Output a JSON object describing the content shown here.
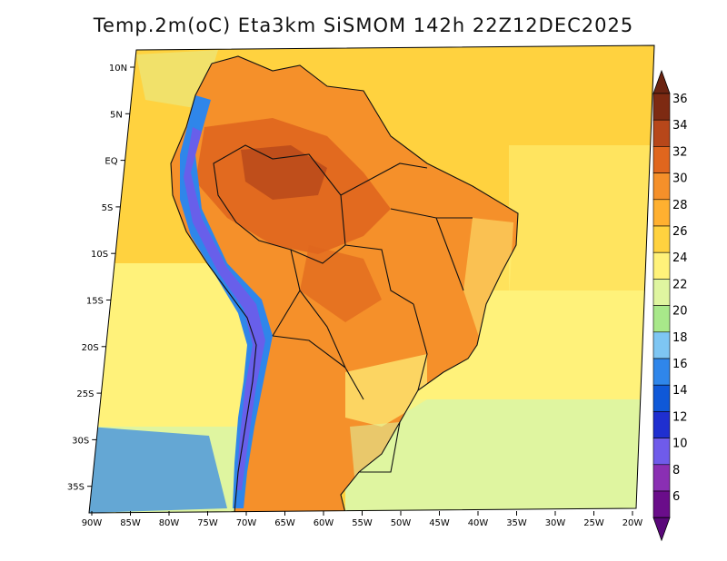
{
  "title": "Temp.2m(oC) Eta3km SiSMOM 142h 22Z12DEC2025",
  "lat_labels": [
    "10N",
    "5N",
    "EQ",
    "5S",
    "10S",
    "15S",
    "20S",
    "25S",
    "30S",
    "35S"
  ],
  "lon_labels": [
    "90W",
    "85W",
    "80W",
    "75W",
    "70W",
    "65W",
    "60W",
    "55W",
    "50W",
    "45W",
    "40W",
    "35W",
    "30W",
    "25W",
    "20W"
  ],
  "colorbar": {
    "labels": [
      "6",
      "8",
      "10",
      "12",
      "14",
      "16",
      "18",
      "20",
      "22",
      "24",
      "26",
      "28",
      "30",
      "32",
      "34",
      "36"
    ],
    "colors": [
      "#6a0d8a",
      "#8a2fb3",
      "#6f5bea",
      "#1f2fd0",
      "#0f58d8",
      "#2f86ea",
      "#7ec6f3",
      "#a8e88a",
      "#dff5a0",
      "#fff27a",
      "#ffd23f",
      "#ffb030",
      "#f5902a",
      "#e0661e",
      "#b7471a",
      "#7d2a12"
    ],
    "min_color": "#5a087a",
    "max_color": "#6b2412"
  },
  "palette": {
    "ocean_warm": "#ffd23f",
    "ocean_mid": "#fff27a",
    "ocean_cool": "#dff5a0",
    "land_hot": "#f5902a",
    "land_very_hot": "#e0661e",
    "land_max": "#b7471a",
    "andes_cold": "#6f5bea",
    "andes_cool": "#2f86ea",
    "border": "#111111"
  }
}
